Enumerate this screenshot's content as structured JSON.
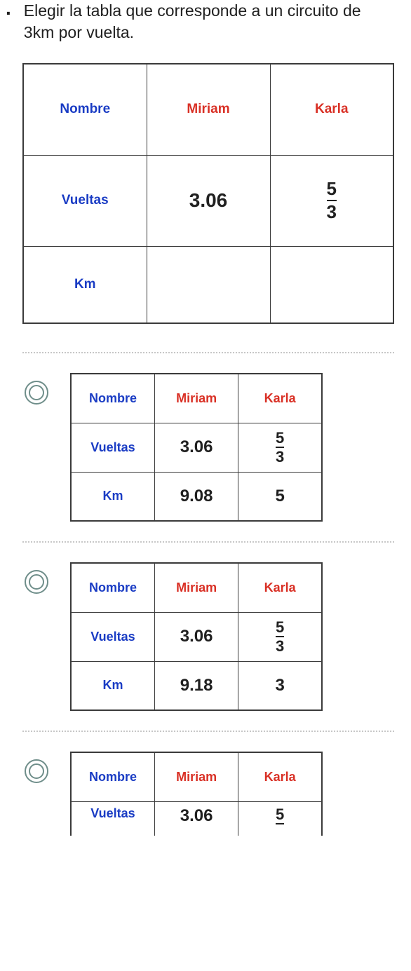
{
  "question": "Elegir la tabla que corresponde a un circuito de 3km por vuelta.",
  "labels": {
    "nombre": "Nombre",
    "vueltas": "Vueltas",
    "km": "Km"
  },
  "people": {
    "miriam": "Miriam",
    "karla": "Karla"
  },
  "main": {
    "miriam_vueltas": "3.06",
    "karla_vueltas": {
      "num": "5",
      "den": "3"
    }
  },
  "options": [
    {
      "miriam_vueltas": "3.06",
      "karla_vueltas": {
        "num": "5",
        "den": "3"
      },
      "miriam_km": "9.08",
      "karla_km": "5"
    },
    {
      "miriam_vueltas": "3.06",
      "karla_vueltas": {
        "num": "5",
        "den": "3"
      },
      "miriam_km": "9.18",
      "karla_km": "3"
    },
    {
      "miriam_vueltas": "3.06",
      "karla_vueltas_partial": "5"
    }
  ],
  "style": {
    "colors": {
      "blue": "#1a3cc4",
      "red": "#d93025",
      "black": "#202020",
      "border": "#3a3a3a",
      "divider": "#c7c7c7",
      "radio": "#6f8e8a",
      "bg": "#ffffff"
    },
    "fonts": {
      "question_size": 23,
      "main_label_size": 19,
      "main_value_size": 28,
      "opt_label_size": 18,
      "opt_value_size": 24
    }
  }
}
